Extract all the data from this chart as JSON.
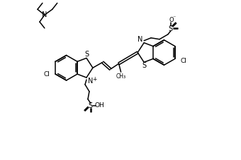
{
  "bg_color": "#ffffff",
  "lw": 1.1,
  "fig_w": 3.4,
  "fig_h": 2.27,
  "dpi": 100,
  "tea_N": [
    62,
    207
  ],
  "lbenz_c": [
    93,
    131
  ],
  "lbenz_r": 18,
  "rbenz_c": [
    232,
    153
  ],
  "rbenz_r": 18
}
